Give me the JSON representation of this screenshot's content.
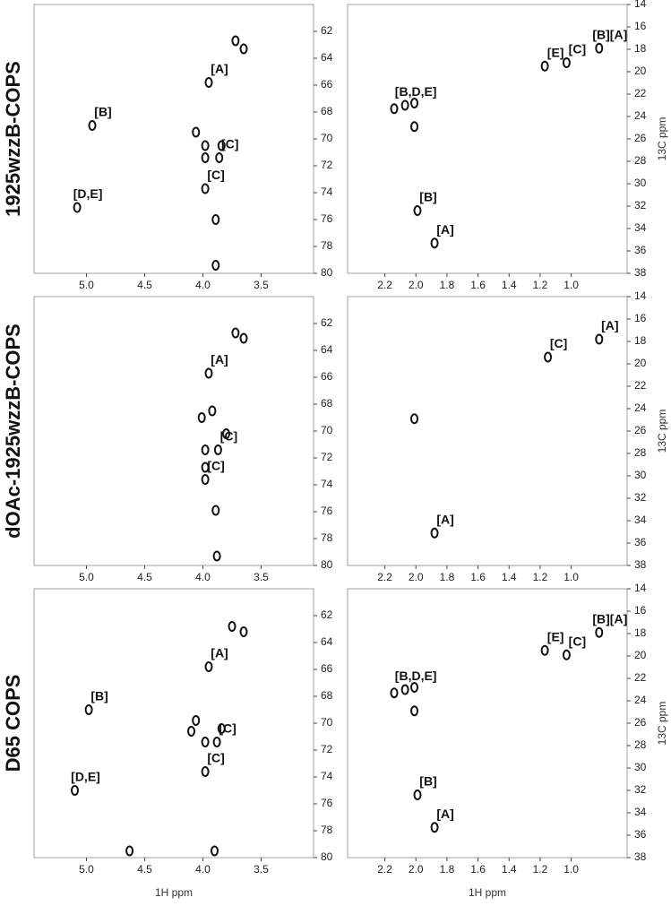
{
  "chart_data": [
    {
      "type": "scatter",
      "title": "1925wzzB-COPS",
      "x": [
        4.95,
        5.08,
        3.95,
        3.72,
        3.65,
        4.06,
        3.98,
        3.84,
        3.98,
        3.86,
        3.98,
        3.89,
        3.89
      ],
      "values": [
        69.0,
        75.1,
        65.8,
        62.7,
        63.3,
        69.5,
        70.5,
        70.5,
        71.4,
        71.4,
        73.7,
        76.0,
        79.4
      ],
      "annotations": [
        "[B]",
        "[D,E]",
        "[A]",
        null,
        null,
        null,
        null,
        null,
        null,
        "[C]",
        "[C]",
        null,
        null
      ],
      "xlim": [
        5.45,
        3.05
      ],
      "ylim": [
        60,
        80
      ],
      "xticks": [
        {
          "value": 5,
          "label": "5.0"
        },
        4.5,
        {
          "value": 4,
          "label": "4.0"
        },
        3.5
      ],
      "yticks": [
        62,
        64,
        66,
        68,
        70,
        72,
        74,
        76,
        78,
        80
      ]
    },
    {
      "type": "scatter",
      "y_label": "13C ppm",
      "x": [
        0.82,
        1.17,
        1.03,
        2.14,
        2.07,
        2.01,
        2.01,
        1.99,
        1.88
      ],
      "values": [
        17.9,
        19.5,
        19.2,
        23.3,
        23.0,
        22.8,
        24.9,
        32.4,
        35.3
      ],
      "annotations": [
        "[B][A]",
        "[E]",
        "[C]",
        null,
        "[B,D,E]",
        null,
        null,
        "[B]",
        "[A]"
      ],
      "xlim": [
        2.44,
        0.64
      ],
      "ylim": [
        14,
        38
      ],
      "xticks": [
        2.2,
        {
          "value": 2,
          "label": "2.0"
        },
        1.8,
        1.6,
        1.4,
        1.2,
        {
          "value": 1,
          "label": "1.0"
        }
      ],
      "yticks": [
        14,
        16,
        18,
        20,
        22,
        24,
        26,
        28,
        30,
        32,
        34,
        36,
        38
      ]
    },
    {
      "type": "scatter",
      "title": "dOAc-1925wzzB-COPS",
      "x": [
        3.72,
        3.65,
        3.95,
        4.01,
        3.92,
        3.8,
        3.87,
        3.98,
        3.98,
        3.98,
        3.89,
        3.88
      ],
      "values": [
        62.7,
        63.1,
        65.7,
        69.0,
        68.5,
        70.2,
        71.4,
        71.4,
        72.7,
        73.6,
        75.9,
        79.3
      ],
      "annotations": [
        null,
        null,
        "[A]",
        null,
        null,
        null,
        "[C]",
        null,
        null,
        "[C]",
        null,
        null
      ],
      "xlim": [
        5.45,
        3.05
      ],
      "ylim": [
        60,
        80
      ],
      "xticks": [
        {
          "value": 5,
          "label": "5.0"
        },
        4.5,
        {
          "value": 4,
          "label": "4.0"
        },
        3.5
      ],
      "yticks": [
        62,
        64,
        66,
        68,
        70,
        72,
        74,
        76,
        78,
        80
      ]
    },
    {
      "type": "scatter",
      "y_label": "13C ppm",
      "x": [
        0.82,
        1.15,
        2.01,
        1.88
      ],
      "values": [
        17.8,
        19.4,
        24.9,
        35.1
      ],
      "annotations": [
        "[A]",
        "[C]",
        null,
        "[A]"
      ],
      "xlim": [
        2.44,
        0.64
      ],
      "ylim": [
        14,
        38
      ],
      "xticks": [
        2.2,
        {
          "value": 2,
          "label": "2.0"
        },
        1.8,
        1.6,
        1.4,
        1.2,
        {
          "value": 1,
          "label": "1.0"
        }
      ],
      "yticks": [
        14,
        16,
        18,
        20,
        22,
        24,
        26,
        28,
        30,
        32,
        34,
        36,
        38
      ]
    },
    {
      "type": "scatter",
      "title": "D65 COPS",
      "x_label": "1H ppm",
      "x": [
        4.98,
        5.1,
        3.95,
        3.75,
        3.65,
        4.06,
        4.1,
        3.84,
        3.98,
        3.88,
        3.98,
        4.63,
        3.9
      ],
      "values": [
        69.0,
        75.0,
        65.8,
        62.8,
        63.2,
        69.8,
        70.6,
        70.4,
        71.4,
        71.4,
        73.6,
        79.5,
        79.5
      ],
      "annotations": [
        "[B]",
        "[D,E]",
        "[A]",
        null,
        null,
        null,
        null,
        null,
        null,
        "[C]",
        "[C]",
        null,
        null
      ],
      "xlim": [
        5.45,
        3.05
      ],
      "ylim": [
        60,
        80
      ],
      "xticks": [
        {
          "value": 5,
          "label": "5.0"
        },
        4.5,
        {
          "value": 4,
          "label": "4.0"
        },
        3.5
      ],
      "yticks": [
        62,
        64,
        66,
        68,
        70,
        72,
        74,
        76,
        78,
        80
      ]
    },
    {
      "type": "scatter",
      "x_label": "1H ppm",
      "y_label": "13C ppm",
      "x": [
        0.82,
        1.17,
        1.03,
        2.14,
        2.07,
        2.01,
        2.01,
        1.99,
        1.88
      ],
      "values": [
        17.9,
        19.5,
        19.9,
        23.3,
        23.0,
        22.8,
        24.9,
        32.4,
        35.3
      ],
      "annotations": [
        "[B][A]",
        "[E]",
        "[C]",
        null,
        "[B,D,E]",
        null,
        null,
        "[B]",
        "[A]"
      ],
      "xlim": [
        2.44,
        0.64
      ],
      "ylim": [
        14,
        38
      ],
      "xticks": [
        2.2,
        {
          "value": 2,
          "label": "2.0"
        },
        1.8,
        1.6,
        1.4,
        1.2,
        {
          "value": 1,
          "label": "1.0"
        }
      ],
      "yticks": [
        14,
        16,
        18,
        20,
        22,
        24,
        26,
        28,
        30,
        32,
        34,
        36,
        38
      ]
    }
  ]
}
